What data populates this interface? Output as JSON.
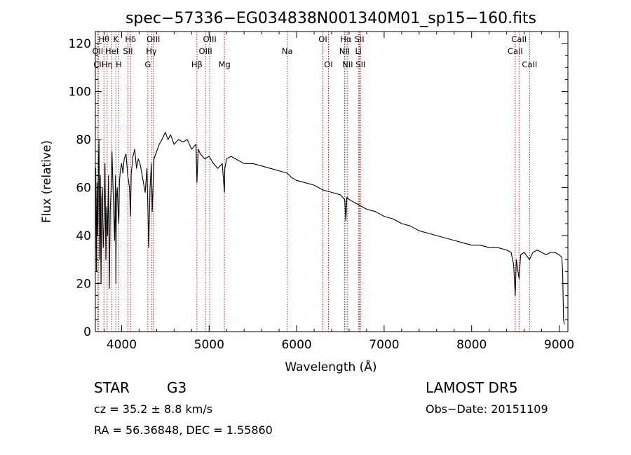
{
  "chart_data": {
    "type": "line",
    "title": "spec−57336−EG034838N001340M01_sp15−160.fits",
    "xlabel": "Wavelength (Å)",
    "ylabel": "Flux (relative)",
    "xlim": [
      3700,
      9100
    ],
    "ylim": [
      0,
      125
    ],
    "xticks": [
      4000,
      5000,
      6000,
      7000,
      8000,
      9000
    ],
    "yticks": [
      0,
      20,
      40,
      60,
      80,
      100,
      120
    ],
    "grid": false,
    "series": [
      {
        "name": "",
        "x": [
          3700,
          3705,
          3712,
          3720,
          3728,
          3735,
          3742,
          3750,
          3757,
          3765,
          3772,
          3780,
          3790,
          3800,
          3810,
          3820,
          3830,
          3840,
          3850,
          3860,
          3870,
          3880,
          3890,
          3900,
          3910,
          3920,
          3930,
          3935,
          3940,
          3950,
          3960,
          3968,
          3975,
          3985,
          4000,
          4015,
          4030,
          4050,
          4070,
          4090,
          4101,
          4110,
          4130,
          4150,
          4170,
          4190,
          4210,
          4230,
          4250,
          4270,
          4290,
          4300,
          4310,
          4325,
          4340,
          4350,
          4370,
          4400,
          4430,
          4460,
          4500,
          4530,
          4560,
          4600,
          4650,
          4700,
          4750,
          4800,
          4850,
          4861,
          4875,
          4900,
          4950,
          5000,
          5050,
          5100,
          5150,
          5175,
          5180,
          5200,
          5250,
          5300,
          5350,
          5400,
          5500,
          5600,
          5700,
          5800,
          5893,
          5950,
          6000,
          6100,
          6200,
          6300,
          6400,
          6500,
          6550,
          6563,
          6575,
          6600,
          6700,
          6800,
          6900,
          7000,
          7100,
          7200,
          7300,
          7400,
          7500,
          7600,
          7700,
          7800,
          7900,
          8000,
          8100,
          8200,
          8300,
          8400,
          8450,
          8480,
          8498,
          8510,
          8542,
          8560,
          8600,
          8662,
          8700,
          8750,
          8800,
          8850,
          8900,
          8950,
          9000,
          9030,
          9040,
          9050,
          9060
        ],
        "y": [
          55,
          68,
          25,
          62,
          40,
          70,
          80,
          30,
          65,
          20,
          55,
          60,
          35,
          45,
          70,
          30,
          52,
          40,
          65,
          18,
          50,
          60,
          75,
          62,
          50,
          38,
          65,
          20,
          55,
          60,
          50,
          45,
          62,
          67,
          70,
          66,
          72,
          74,
          65,
          60,
          48,
          66,
          73,
          76,
          68,
          72,
          70,
          66,
          62,
          58,
          68,
          52,
          35,
          60,
          70,
          50,
          72,
          75,
          78,
          80,
          83,
          80,
          82,
          78,
          80,
          79,
          80,
          76,
          78,
          62,
          76,
          74,
          72,
          73,
          70,
          68,
          70,
          58,
          68,
          72,
          73,
          72,
          71,
          70,
          70,
          69,
          68,
          67,
          66,
          64,
          63,
          62,
          61,
          59,
          58,
          57,
          55,
          46,
          56,
          55,
          53,
          51,
          50,
          48,
          47,
          45,
          44,
          42,
          41,
          40,
          39,
          38,
          37,
          36,
          36,
          35,
          35,
          34,
          33,
          28,
          15,
          30,
          22,
          32,
          33,
          30,
          33,
          34,
          33,
          32,
          33,
          33,
          32,
          31,
          25,
          5,
          3
        ]
      }
    ],
    "line_markers": [
      {
        "x": 3727,
        "label": "OII",
        "row": 2
      },
      {
        "x": 3737,
        "label": "CII",
        "row": 3
      },
      {
        "x": 3798,
        "label": "Hθ",
        "row": 1
      },
      {
        "x": 3835,
        "label": "Hη",
        "row": 3
      },
      {
        "x": 3889,
        "label": "HeI",
        "row": 2
      },
      {
        "x": 3934,
        "label": "K",
        "row": 1
      },
      {
        "x": 3968,
        "label": "H",
        "row": 3
      },
      {
        "x": 4072,
        "label": "SII",
        "row": 2
      },
      {
        "x": 4102,
        "label": "Hδ",
        "row": 1
      },
      {
        "x": 4300,
        "label": "G",
        "row": 3
      },
      {
        "x": 4341,
        "label": "Hγ",
        "row": 2
      },
      {
        "x": 4363,
        "label": "OIII",
        "row": 1
      },
      {
        "x": 4861,
        "label": "Hβ",
        "row": 3
      },
      {
        "x": 4959,
        "label": "OIII",
        "row": 2
      },
      {
        "x": 5007,
        "label": "OIII",
        "row": 1
      },
      {
        "x": 5175,
        "label": "Mg",
        "row": 3
      },
      {
        "x": 5893,
        "label": "Na",
        "row": 2
      },
      {
        "x": 6300,
        "label": "OI",
        "row": 1
      },
      {
        "x": 6364,
        "label": "OI",
        "row": 3
      },
      {
        "x": 6548,
        "label": "NII",
        "row": 2
      },
      {
        "x": 6563,
        "label": "Hα",
        "row": 1
      },
      {
        "x": 6583,
        "label": "NII",
        "row": 3
      },
      {
        "x": 6707,
        "label": "Li",
        "row": 2
      },
      {
        "x": 6717,
        "label": "SII",
        "row": 1
      },
      {
        "x": 6731,
        "label": "SII",
        "row": 3
      },
      {
        "x": 8498,
        "label": "CaII",
        "row": 2
      },
      {
        "x": 8542,
        "label": "CaII",
        "row": 1
      },
      {
        "x": 8662,
        "label": "CaII",
        "row": 3
      }
    ]
  },
  "info": {
    "class_text": "STAR",
    "subclass_text": "G3",
    "survey_text": "LAMOST DR5",
    "cz_text": "cz = 35.2 ± 8.8 km/s",
    "obs_date_text": "Obs−Date: 20151109",
    "radec_text": "RA =  56.36848, DEC =   1.55860"
  }
}
